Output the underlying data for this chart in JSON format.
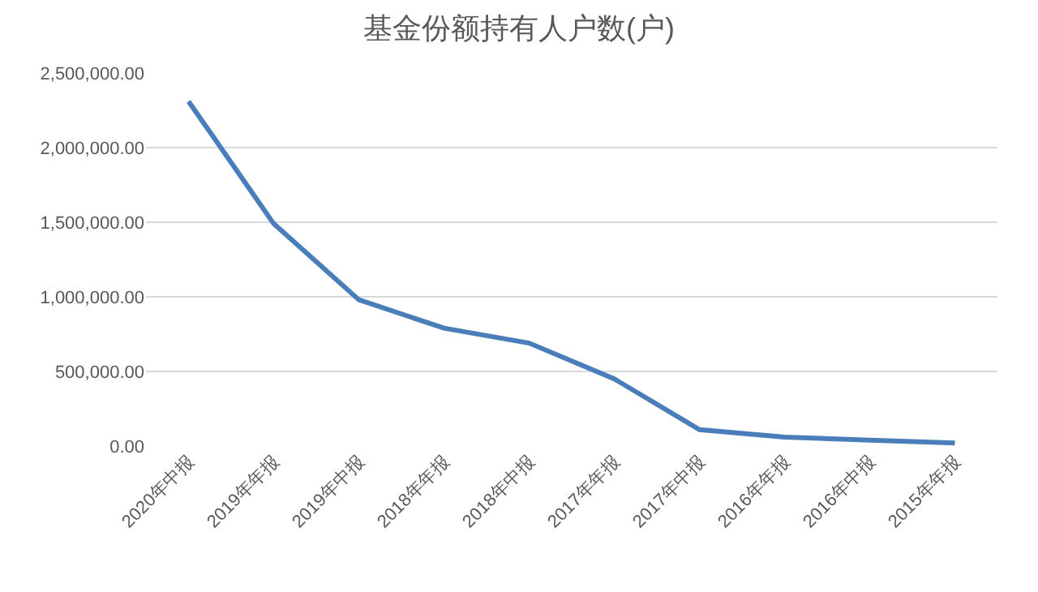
{
  "chart_data": {
    "type": "line",
    "title": "基金份额持有人户数(户)",
    "categories": [
      "2020年中报",
      "2019年年报",
      "2019年中报",
      "2018年年报",
      "2018年中报",
      "2017年年报",
      "2017年中报",
      "2016年年报",
      "2016年中报",
      "2015年年报"
    ],
    "series": [
      {
        "color": "#4a7ebb",
        "values": [
          2310000,
          1490000,
          980000,
          790000,
          690000,
          450000,
          110000,
          60000,
          40000,
          20000
        ]
      }
    ],
    "ylim": [
      0,
      2500000
    ],
    "yticks": [
      {
        "value": 0,
        "label": "0.00"
      },
      {
        "value": 500000,
        "label": "500,000.00"
      },
      {
        "value": 1000000,
        "label": "1,000,000.00"
      },
      {
        "value": 1500000,
        "label": "1,500,000.00"
      },
      {
        "value": 2000000,
        "label": "2,000,000.00"
      },
      {
        "value": 2500000,
        "label": "2,500,000.00"
      }
    ],
    "grid": "y",
    "legend": false,
    "marker": "none",
    "line_style": "solid"
  }
}
